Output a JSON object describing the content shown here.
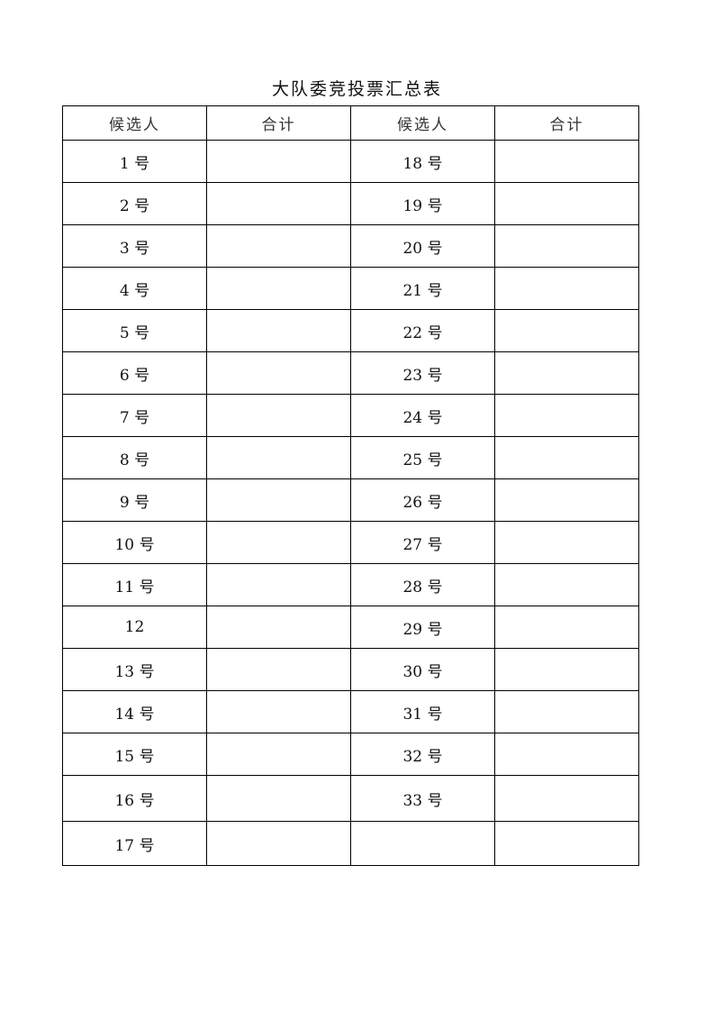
{
  "title": "大队委竞投票汇总表",
  "headers": [
    "候选人",
    "合计",
    "候选人",
    "合计"
  ],
  "rows": [
    {
      "left_candidate": "1 号",
      "left_total": "",
      "right_candidate": "18 号",
      "right_total": ""
    },
    {
      "left_candidate": "2 号",
      "left_total": "",
      "right_candidate": "19 号",
      "right_total": ""
    },
    {
      "left_candidate": "3 号",
      "left_total": "",
      "right_candidate": "20 号",
      "right_total": ""
    },
    {
      "left_candidate": "4 号",
      "left_total": "",
      "right_candidate": "21 号",
      "right_total": ""
    },
    {
      "left_candidate": "5 号",
      "left_total": "",
      "right_candidate": "22 号",
      "right_total": ""
    },
    {
      "left_candidate": "6 号",
      "left_total": "",
      "right_candidate": "23 号",
      "right_total": ""
    },
    {
      "left_candidate": "7 号",
      "left_total": "",
      "right_candidate": "24 号",
      "right_total": ""
    },
    {
      "left_candidate": "8 号",
      "left_total": "",
      "right_candidate": "25 号",
      "right_total": ""
    },
    {
      "left_candidate": "9 号",
      "left_total": "",
      "right_candidate": "26 号",
      "right_total": ""
    },
    {
      "left_candidate": "10 号",
      "left_total": "",
      "right_candidate": "27 号",
      "right_total": ""
    },
    {
      "left_candidate": "11 号",
      "left_total": "",
      "right_candidate": "28 号",
      "right_total": ""
    },
    {
      "left_candidate": "12",
      "left_total": "",
      "right_candidate": "29 号",
      "right_total": ""
    },
    {
      "left_candidate": "13 号",
      "left_total": "",
      "right_candidate": "30 号",
      "right_total": ""
    },
    {
      "left_candidate": "14 号",
      "left_total": "",
      "right_candidate": "31 号",
      "right_total": ""
    },
    {
      "left_candidate": "15 号",
      "left_total": "",
      "right_candidate": "32 号",
      "right_total": ""
    },
    {
      "left_candidate": "16 号",
      "left_total": "",
      "right_candidate": "33 号",
      "right_total": ""
    },
    {
      "left_candidate": "17 号",
      "left_total": "",
      "right_candidate": "",
      "right_total": ""
    }
  ]
}
